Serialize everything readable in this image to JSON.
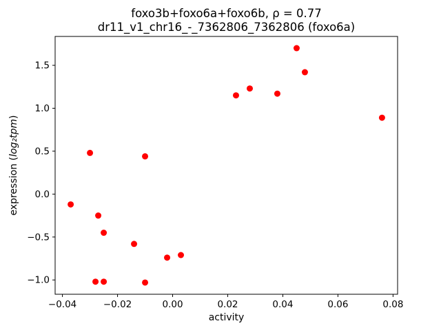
{
  "chart_data": {
    "type": "scatter",
    "title": "foxo3b+foxo6a+foxo6b, ρ = 0.77",
    "subtitle": "dr11_v1_chr16_-_7362806_7362806 (foxo6a)",
    "xlabel": "activity",
    "ylabel": "expression (log₂tpm)",
    "ylabel_parts": {
      "prefix": "expression (",
      "math": "log₂tpm",
      "suffix": ")"
    },
    "marker_color": "#ff0000",
    "background_color": "#ffffff",
    "grid": false,
    "legend": null,
    "xlim": [
      -0.04265,
      0.08165
    ],
    "ylim": [
      -1.1665,
      1.8365
    ],
    "xticks": [
      {
        "v": -0.04,
        "label": "−0.04"
      },
      {
        "v": -0.02,
        "label": "−0.02"
      },
      {
        "v": 0.0,
        "label": "0.00"
      },
      {
        "v": 0.02,
        "label": "0.02"
      },
      {
        "v": 0.04,
        "label": "0.04"
      },
      {
        "v": 0.06,
        "label": "0.06"
      },
      {
        "v": 0.08,
        "label": "0.08"
      }
    ],
    "yticks": [
      {
        "v": -1.0,
        "label": "−1.0"
      },
      {
        "v": -0.5,
        "label": "−0.5"
      },
      {
        "v": 0.0,
        "label": "0.0"
      },
      {
        "v": 0.5,
        "label": "0.5"
      },
      {
        "v": 1.0,
        "label": "1.0"
      },
      {
        "v": 1.5,
        "label": "1.5"
      }
    ],
    "x": [
      -0.037,
      -0.03,
      -0.027,
      -0.025,
      -0.028,
      -0.025,
      -0.014,
      -0.01,
      -0.01,
      -0.002,
      0.003,
      0.023,
      0.028,
      0.038,
      0.045,
      0.048,
      0.076
    ],
    "y": [
      -0.12,
      0.48,
      -0.25,
      -0.45,
      -1.02,
      -1.02,
      -0.58,
      0.44,
      -1.03,
      -0.74,
      -0.71,
      1.15,
      1.23,
      1.17,
      1.7,
      1.42,
      0.89
    ]
  }
}
